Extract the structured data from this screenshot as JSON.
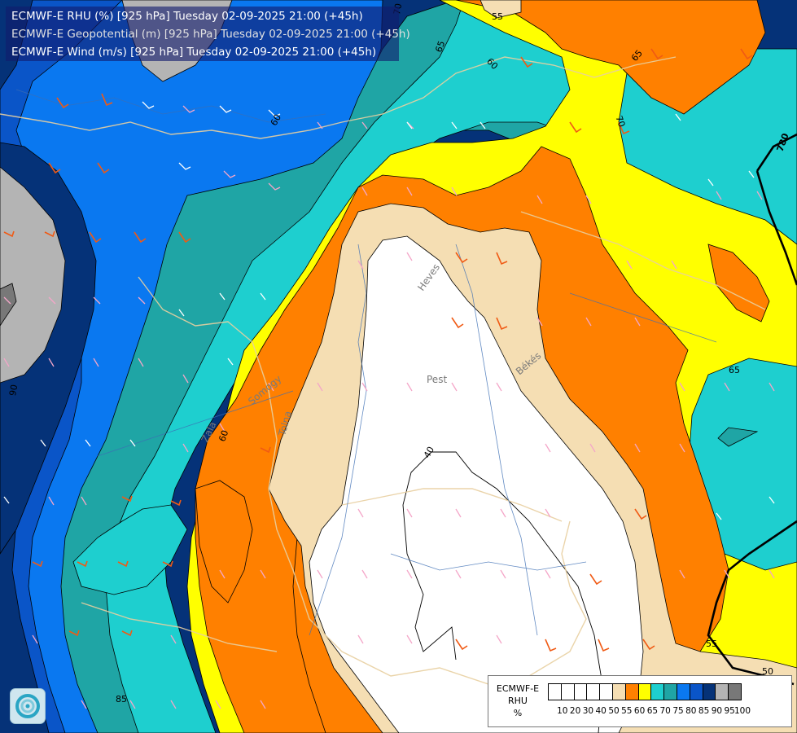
{
  "header": {
    "line1": "ECMWF-E RHU (%) [925 hPa] Tuesday 02-09-2025 21:00 (+45h)",
    "line2": "ECMWF-E Geopotential (m) [925 hPa] Tuesday 02-09-2025 21:00 (+45h)",
    "line3": "ECMWF-E Wind (m/s) [925 hPa] Tuesday 02-09-2025 21:00 (+45h)"
  },
  "legend": {
    "model": "ECMWF-E",
    "variable": "RHU",
    "unit": "%",
    "colors": [
      "#ffffff",
      "#ffffff",
      "#ffffff",
      "#ffffff",
      "#ffffff",
      "#f5deb3",
      "#ff8000",
      "#ffff00",
      "#1ecfcf",
      "#1fa5a5",
      "#0a78f0",
      "#0a55c8",
      "#053278",
      "#b4b4b4",
      "#787878"
    ],
    "ticks": [
      "10",
      "20",
      "30",
      "40",
      "50",
      "55",
      "60",
      "65",
      "70",
      "75",
      "80",
      "85",
      "90",
      "95",
      "100"
    ]
  },
  "map": {
    "contour_labels": {
      "rhu": [
        "55",
        "60",
        "65",
        "65",
        "70",
        "70",
        "60",
        "65",
        "60",
        "60",
        "90",
        "85",
        "40",
        "50",
        "55"
      ],
      "geopotential": [
        "780"
      ]
    },
    "place_names": [
      "Heves",
      "Pest",
      "Békés",
      "Somogy",
      "Tolna",
      "Zala"
    ],
    "logo_icon": "ecmwf-swirl-icon"
  }
}
